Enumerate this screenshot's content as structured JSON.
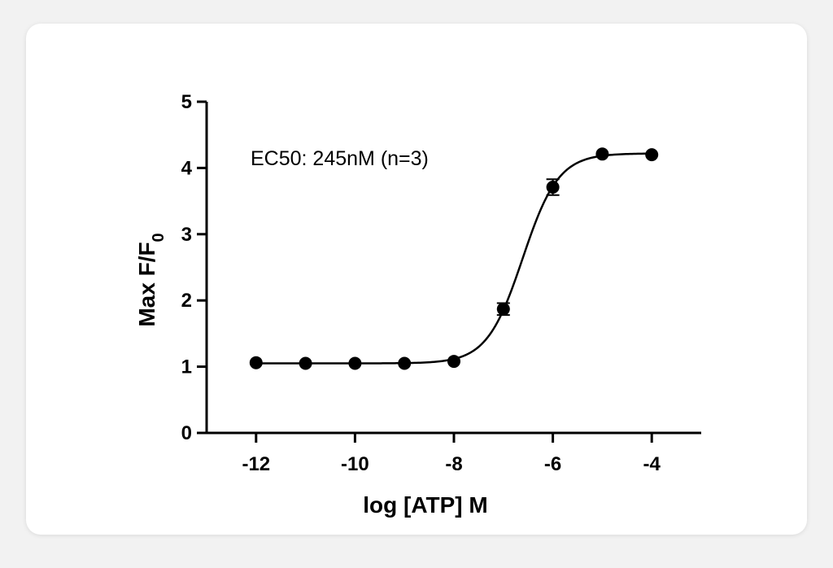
{
  "chart_data": {
    "type": "scatter",
    "title": "",
    "xlabel": "log [ATP] M",
    "ylabel": "Max F/F",
    "ylabel_subscript": "0",
    "annotation": "EC50: 245nM (n=3)",
    "xlim": [
      -13,
      -3
    ],
    "ylim": [
      0,
      5
    ],
    "x_ticks": [
      -12,
      -10,
      -8,
      -6,
      -4
    ],
    "y_ticks": [
      0,
      1,
      2,
      3,
      4,
      5
    ],
    "grid": false,
    "series": [
      {
        "x": [
          -12,
          -11,
          -10,
          -9,
          -8,
          -7,
          -6,
          -5,
          -4
        ],
        "y": [
          1.06,
          1.05,
          1.05,
          1.05,
          1.08,
          1.87,
          3.71,
          4.21,
          4.2
        ],
        "error": [
          0.02,
          0.02,
          0.02,
          0.02,
          0.03,
          0.09,
          0.12,
          0.03,
          0.07
        ]
      }
    ],
    "fit": {
      "model": "sigmoidal dose-response",
      "bottom": 1.05,
      "top": 4.22,
      "logEC50": -6.61,
      "hill": 1.2
    },
    "colors": {
      "marker": "#000000",
      "line": "#000000"
    }
  }
}
